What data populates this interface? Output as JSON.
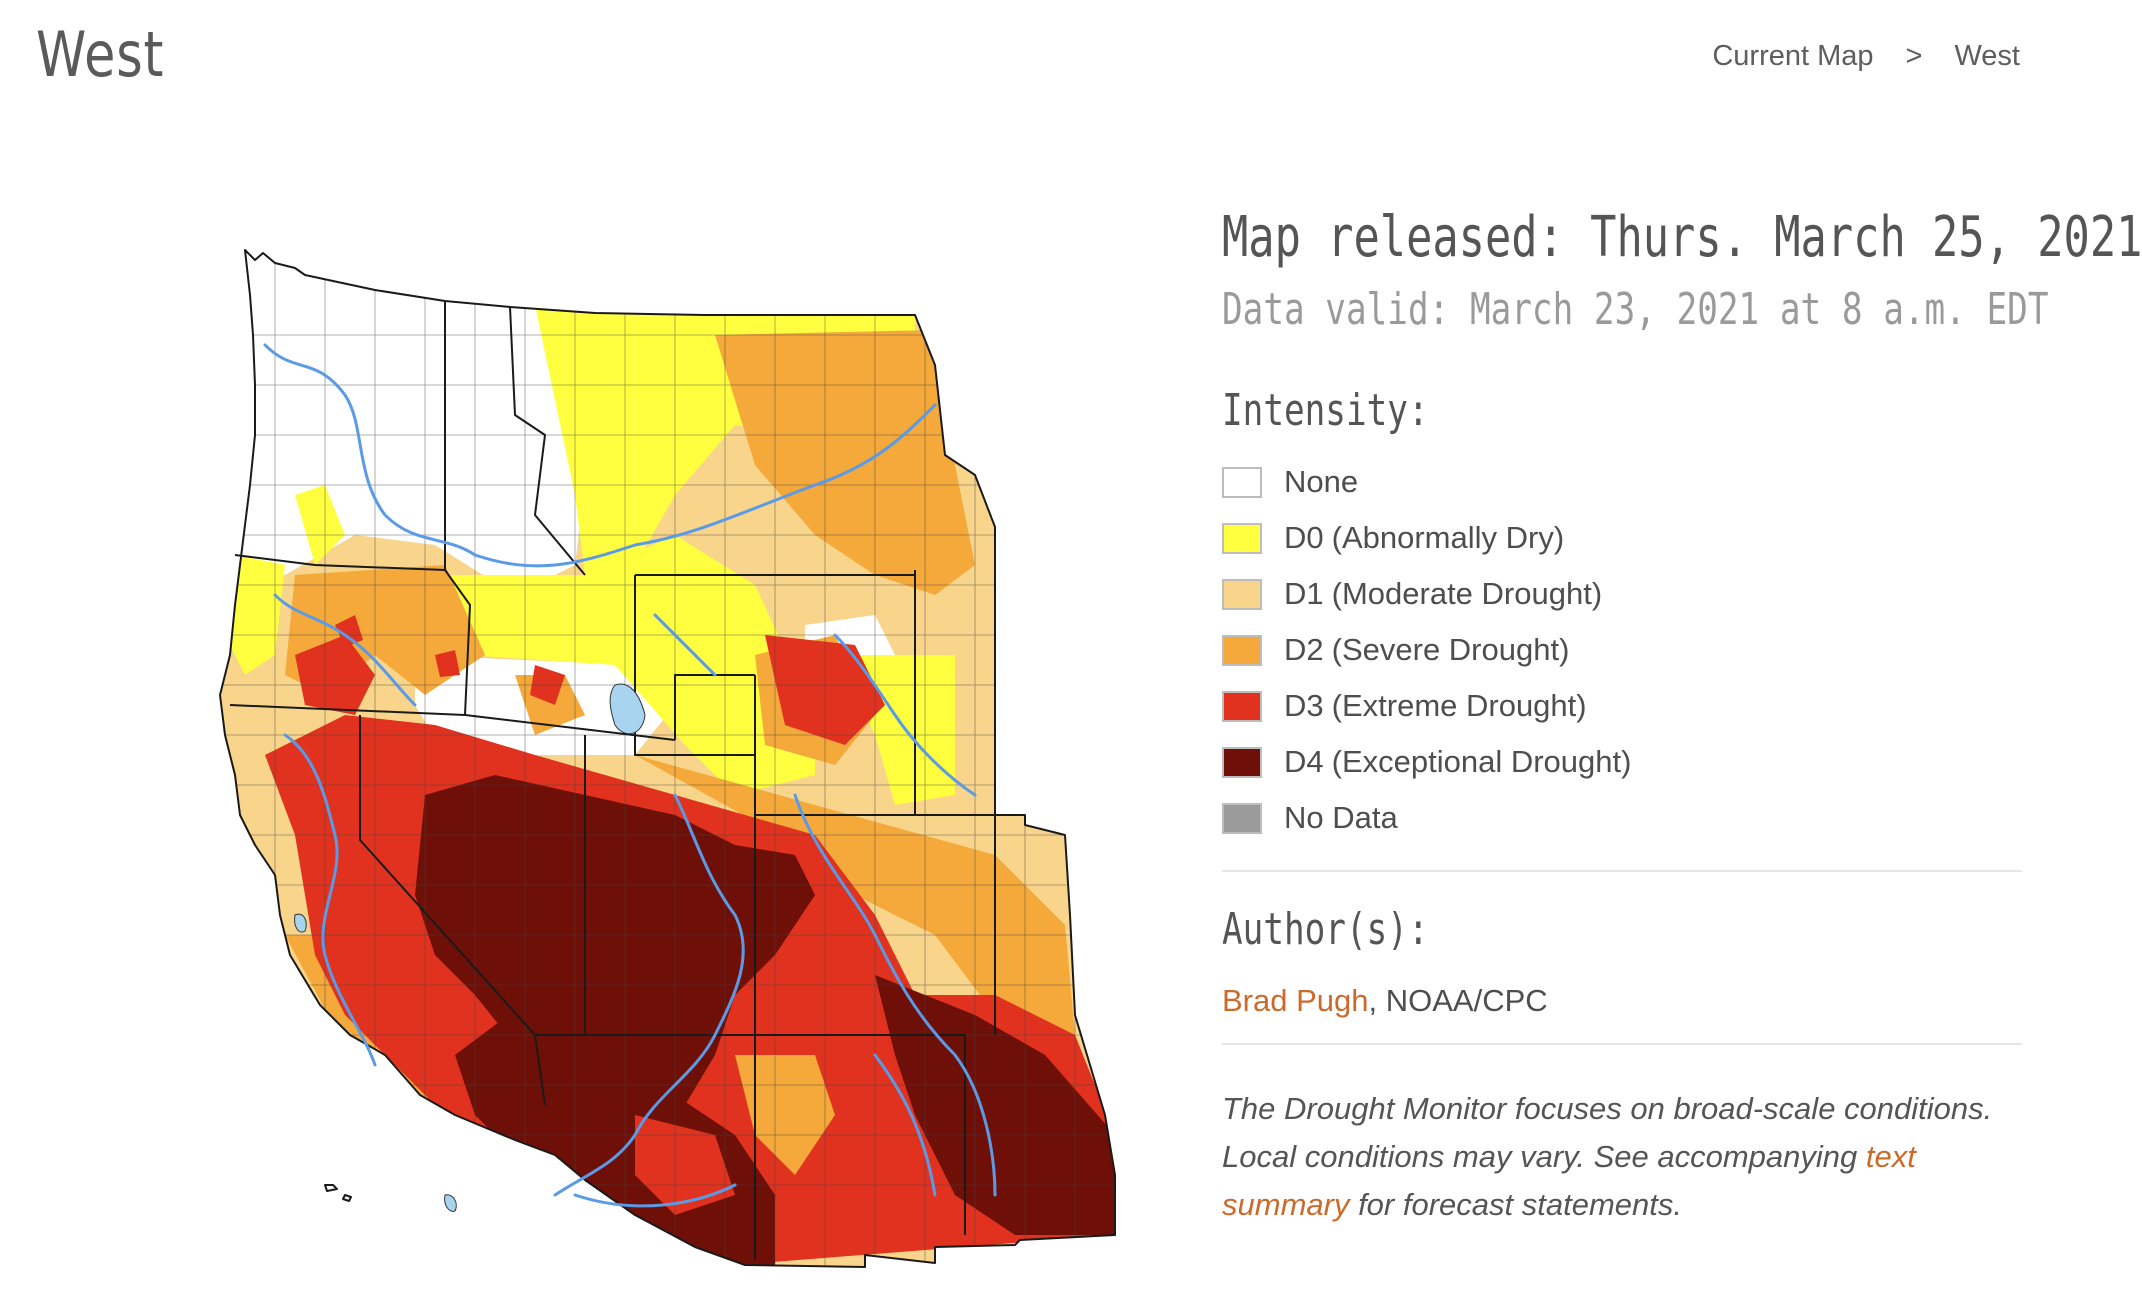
{
  "header": {
    "title": "West",
    "breadcrumb": [
      {
        "label": "Current Map"
      },
      {
        "label": ">"
      },
      {
        "label": "West"
      }
    ]
  },
  "map": {
    "rivers_color": "#5a9ae6",
    "lake_color": "#a8d4f0",
    "border_color": "#1a1a1a"
  },
  "info": {
    "released": "Map released: Thurs. March 25, 2021",
    "valid": "Data valid: March 23, 2021 at 8 a.m. EDT",
    "intensity_heading": "Intensity:",
    "legend": [
      {
        "code": "None",
        "label": "",
        "color": "#ffffff"
      },
      {
        "code": "D0",
        "label": "(Abnormally Dry)",
        "color": "#ffff40"
      },
      {
        "code": "D1",
        "label": "(Moderate Drought)",
        "color": "#f8d58a"
      },
      {
        "code": "D2",
        "label": "(Severe Drought)",
        "color": "#f4a93a"
      },
      {
        "code": "D3",
        "label": "(Extreme Drought)",
        "color": "#e0321e"
      },
      {
        "code": "D4",
        "label": "(Exceptional Drought)",
        "color": "#6e1008"
      },
      {
        "code": "No Data",
        "label": "",
        "color": "#9b9b9b"
      }
    ],
    "author_heading": "Author(s):",
    "author_name": "Brad Pugh",
    "author_org": ", NOAA/CPC",
    "note_before": "The Drought Monitor focuses on broad-scale conditions. Local conditions may vary. See accompanying ",
    "note_link": "text summary",
    "note_after": " for forecast statements."
  }
}
